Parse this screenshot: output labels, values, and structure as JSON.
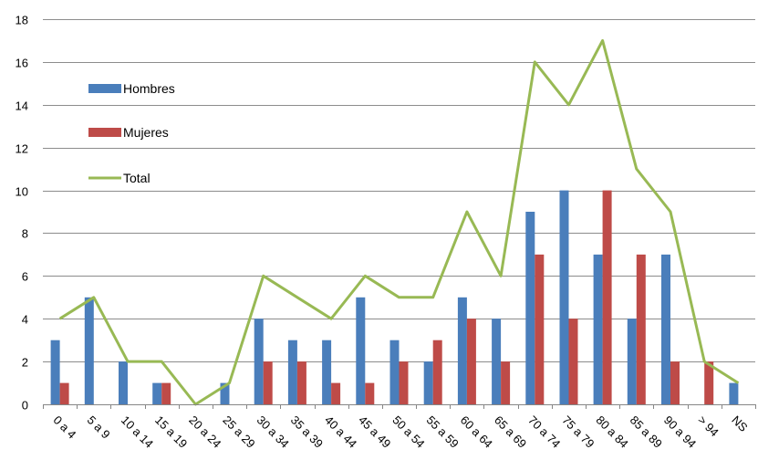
{
  "chart_data": {
    "type": "bar",
    "categories": [
      "0 a 4",
      "5 a 9",
      "10 a 14",
      "15 a 19",
      "20 a 24",
      "25 a 29",
      "30 a 34",
      "35 a 39",
      "40 a 44",
      "45 a 49",
      "50 a 54",
      "55 a 59",
      "60 a 64",
      "65 a 69",
      "70 a 74",
      "75 a 79",
      "80 a 84",
      "85 a 89",
      "90 a 94",
      "> 94",
      "NS"
    ],
    "series": [
      {
        "name": "Hombres",
        "kind": "bar",
        "color": "#4a7ebb",
        "values": [
          3,
          5,
          2,
          1,
          0,
          1,
          4,
          3,
          3,
          5,
          3,
          2,
          5,
          4,
          9,
          10,
          7,
          4,
          7,
          0,
          1
        ]
      },
      {
        "name": "Mujeres",
        "kind": "bar",
        "color": "#be4b48",
        "values": [
          1,
          0,
          0,
          1,
          0,
          0,
          2,
          2,
          1,
          1,
          2,
          3,
          4,
          2,
          7,
          4,
          10,
          7,
          2,
          2,
          0
        ]
      },
      {
        "name": "Total",
        "kind": "line",
        "color": "#98b954",
        "values": [
          4,
          5,
          2,
          2,
          0,
          1,
          6,
          5,
          4,
          6,
          5,
          5,
          9,
          6,
          16,
          14,
          17,
          11,
          9,
          2,
          1
        ]
      }
    ],
    "ylim": [
      0,
      18
    ],
    "yticks": [
      0,
      2,
      4,
      6,
      8,
      10,
      12,
      14,
      16,
      18
    ],
    "grid": true,
    "legend_position": "left-top"
  }
}
